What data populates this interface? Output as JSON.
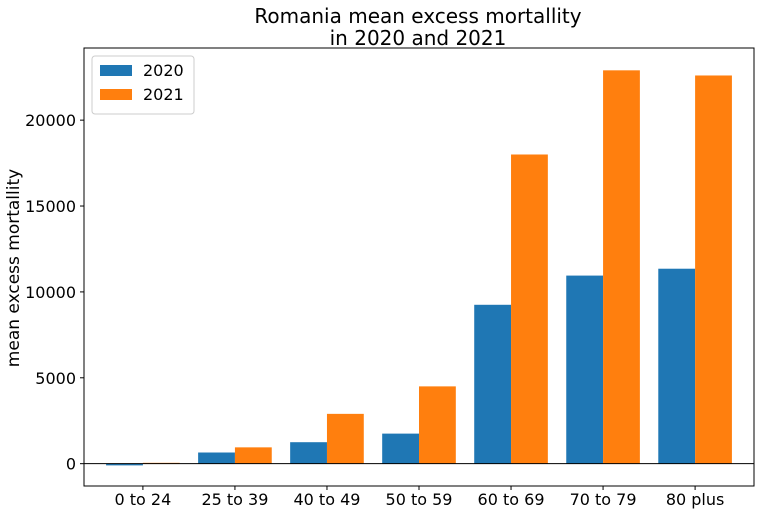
{
  "chart_data": {
    "type": "bar",
    "title_line1": "Romania mean excess mortallity",
    "title_line2": "in 2020 and 2021",
    "xlabel": "",
    "ylabel": "mean excess mortallity",
    "categories": [
      "0 to 24",
      "25 to 39",
      "40 to 49",
      "50 to 59",
      "60 to 69",
      "70 to 79",
      "80 plus"
    ],
    "series": [
      {
        "name": "2020",
        "color": "#1f77b4",
        "values": [
          -100,
          650,
          1250,
          1750,
          9250,
          10950,
          11350
        ]
      },
      {
        "name": "2021",
        "color": "#ff7f0e",
        "values": [
          50,
          950,
          2900,
          4500,
          18000,
          22900,
          22600
        ]
      }
    ],
    "ylim": [
      -1300,
      24200
    ],
    "yticks": [
      0,
      5000,
      10000,
      15000,
      20000
    ],
    "zero_line": true,
    "grid": false,
    "legend_position": "top-left"
  }
}
